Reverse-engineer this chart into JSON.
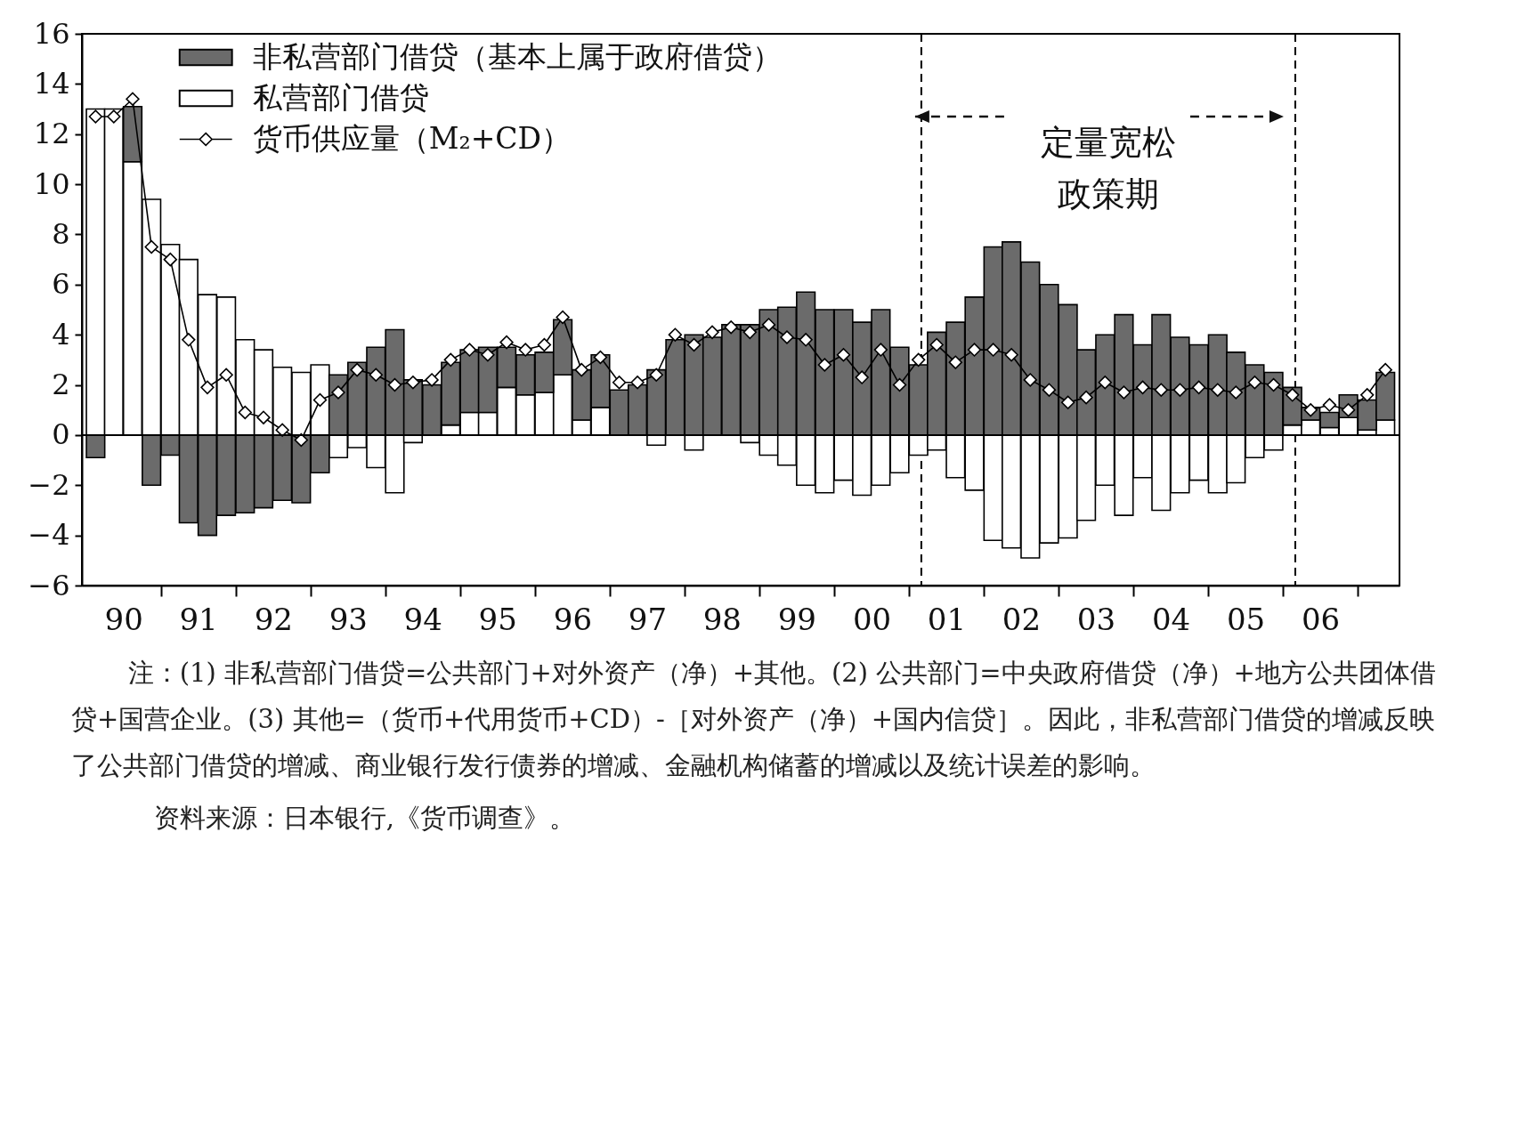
{
  "chart_data": {
    "type": "bar",
    "stacked": true,
    "legend": "top left",
    "marker": "diamond",
    "x": [
      "1990-02-15",
      "1990-05-15",
      "1990-08-15",
      "1990-11-15",
      "1991-02-15",
      "1991-05-15",
      "1991-08-15",
      "1991-11-15",
      "1992-02-15",
      "1992-05-15",
      "1992-08-15",
      "1992-11-15",
      "1993-02-15",
      "1993-05-15",
      "1993-08-15",
      "1993-11-15",
      "1994-02-15",
      "1994-05-15",
      "1994-08-15",
      "1994-11-15",
      "1995-02-15",
      "1995-05-15",
      "1995-08-15",
      "1995-11-15",
      "1996-02-15",
      "1996-05-15",
      "1996-08-15",
      "1996-11-15",
      "1997-02-15",
      "1997-05-15",
      "1997-08-15",
      "1997-11-15",
      "1998-02-15",
      "1998-05-15",
      "1998-08-15",
      "1998-11-15",
      "1999-02-15",
      "1999-05-15",
      "1999-08-15",
      "1999-11-15",
      "2000-02-15",
      "2000-05-15",
      "2000-08-15",
      "2000-11-15",
      "2001-02-15",
      "2001-05-15",
      "2001-08-15",
      "2001-11-15",
      "2002-02-15",
      "2002-05-15",
      "2002-08-15",
      "2002-11-15",
      "2003-02-15",
      "2003-05-15",
      "2003-08-15",
      "2003-11-15",
      "2004-02-15",
      "2004-05-15",
      "2004-08-15",
      "2004-11-15",
      "2005-02-15",
      "2005-05-15",
      "2005-08-15",
      "2005-11-15",
      "2006-02-15",
      "2006-05-15",
      "2006-08-15",
      "2006-11-15",
      "2007-02-15",
      "2007-05-15"
    ],
    "xlim": [
      "1990-01-01",
      "2007-07-01"
    ],
    "xticks": [
      {
        "value": "1990-07-01",
        "label": "90"
      },
      {
        "value": "1991-01-01",
        "label": null
      },
      {
        "value": "1991-07-01",
        "label": "91"
      },
      {
        "value": "1992-01-01",
        "label": null
      },
      {
        "value": "1992-07-01",
        "label": "92"
      },
      {
        "value": "1993-01-01",
        "label": null
      },
      {
        "value": "1993-07-01",
        "label": "93"
      },
      {
        "value": "1994-01-01",
        "label": null
      },
      {
        "value": "1994-07-01",
        "label": "94"
      },
      {
        "value": "1995-01-01",
        "label": null
      },
      {
        "value": "1995-07-01",
        "label": "95"
      },
      {
        "value": "1996-01-01",
        "label": null
      },
      {
        "value": "1996-07-01",
        "label": "96"
      },
      {
        "value": "1997-01-01",
        "label": null
      },
      {
        "value": "1997-07-01",
        "label": "97"
      },
      {
        "value": "1998-01-01",
        "label": null
      },
      {
        "value": "1998-07-01",
        "label": "98"
      },
      {
        "value": "1999-01-01",
        "label": null
      },
      {
        "value": "1999-07-01",
        "label": "99"
      },
      {
        "value": "2000-01-01",
        "label": null
      },
      {
        "value": "2000-07-01",
        "label": "00"
      },
      {
        "value": "2001-01-01",
        "label": null
      },
      {
        "value": "2001-07-01",
        "label": "01"
      },
      {
        "value": "2002-01-01",
        "label": null
      },
      {
        "value": "2002-07-01",
        "label": "02"
      },
      {
        "value": "2003-01-01",
        "label": null
      },
      {
        "value": "2003-07-01",
        "label": "03"
      },
      {
        "value": "2004-01-01",
        "label": null
      },
      {
        "value": "2004-07-01",
        "label": "04"
      },
      {
        "value": "2005-01-01",
        "label": null
      },
      {
        "value": "2005-07-01",
        "label": "05"
      },
      {
        "value": "2006-01-01",
        "label": null
      },
      {
        "value": "2006-07-01",
        "label": "06"
      },
      {
        "value": "2007-01-01",
        "label": null
      }
    ],
    "ylim": [
      -6,
      16
    ],
    "yticks": [
      -6,
      -4,
      -2,
      0,
      2,
      4,
      6,
      8,
      10,
      12,
      14,
      16
    ],
    "series": [
      {
        "name": "私营部门借贷",
        "color": "#ffffff",
        "values": [
          13.0,
          13.0,
          10.9,
          9.4,
          7.6,
          7.0,
          5.6,
          5.5,
          3.8,
          3.4,
          2.7,
          2.5,
          2.8,
          -0.9,
          -0.5,
          -1.3,
          -2.3,
          -0.3,
          null,
          0.4,
          0.9,
          0.9,
          1.9,
          1.6,
          1.7,
          2.4,
          0.6,
          1.1,
          null,
          null,
          -0.4,
          null,
          -0.6,
          null,
          null,
          -0.3,
          -0.8,
          -1.2,
          -2.0,
          -2.3,
          -1.8,
          -2.4,
          -2.0,
          -1.5,
          -0.8,
          -0.6,
          -1.7,
          -2.2,
          -4.2,
          -4.5,
          -4.9,
          -4.3,
          -4.1,
          -3.4,
          -2.0,
          -3.2,
          -1.7,
          -3.0,
          -2.3,
          -1.8,
          -2.3,
          -1.9,
          -0.9,
          -0.6,
          0.4,
          0.6,
          0.3,
          0.7,
          0.2,
          0.6
        ]
      },
      {
        "name": "非私营部门借贷（基本上属于政府借贷）",
        "color": "#6b6b6b",
        "values": [
          -0.9,
          null,
          2.2,
          -2.0,
          -0.8,
          -3.5,
          -4.0,
          -3.2,
          -3.1,
          -2.9,
          -2.6,
          -2.7,
          -1.5,
          2.4,
          2.9,
          3.5,
          4.2,
          2.2,
          2.0,
          2.5,
          2.5,
          2.6,
          1.6,
          1.6,
          1.6,
          2.2,
          2.0,
          2.1,
          1.8,
          2.0,
          2.6,
          3.8,
          4.0,
          3.9,
          4.4,
          4.4,
          5.0,
          5.1,
          5.7,
          5.0,
          5.0,
          4.5,
          5.0,
          3.5,
          2.8,
          4.1,
          4.5,
          5.5,
          7.5,
          7.7,
          6.9,
          6.0,
          5.2,
          3.4,
          4.0,
          4.8,
          3.6,
          4.8,
          3.9,
          3.6,
          4.0,
          3.3,
          2.8,
          2.5,
          1.5,
          0.5,
          0.6,
          0.9,
          1.2,
          1.9
        ]
      },
      {
        "name": "货币供应量（M₂+CD）",
        "type": "line",
        "color": "#000000",
        "values": [
          12.7,
          12.7,
          13.4,
          7.5,
          7.0,
          3.8,
          1.9,
          2.4,
          0.9,
          0.7,
          0.2,
          -0.2,
          1.4,
          1.7,
          2.6,
          2.4,
          2.0,
          2.1,
          2.2,
          3.0,
          3.4,
          3.2,
          3.7,
          3.4,
          3.6,
          4.7,
          2.6,
          3.1,
          2.1,
          2.1,
          2.4,
          4.0,
          3.6,
          4.1,
          4.3,
          4.1,
          4.4,
          3.9,
          3.8,
          2.8,
          3.2,
          2.3,
          3.4,
          2.0,
          3.0,
          3.6,
          2.9,
          3.4,
          3.4,
          3.2,
          2.2,
          1.8,
          1.3,
          1.5,
          2.1,
          1.7,
          1.9,
          1.8,
          1.8,
          1.9,
          1.8,
          1.7,
          2.1,
          2.0,
          1.6,
          1.0,
          1.2,
          1.0,
          1.6,
          2.6
        ]
      }
    ],
    "ref_lines": [
      {
        "axis": "x",
        "value": "2001-03",
        "line_style": "dashed",
        "color": "#000000",
        "label": "定量宽松政策期"
      },
      {
        "axis": "x",
        "value": "2006-03",
        "line_style": "dashed",
        "color": "#000000"
      },
      {
        "axis": "y",
        "value": 0,
        "color": "#000000"
      }
    ],
    "annotations": [
      "注：(1) 非私营部门借贷=公共部门+对外资产（净）+其他。(2) 公共部门=中央政府借贷（净）+地方公共团体借贷+国营企业。(3) 其他=（货币+代用货币+CD）-［对外资产（净）+国内信贷］。因此，非私营部门借贷的增减反映了公共部门借贷的增减、商业银行发行债券的增减、金融机构储蓄的增减以及统计误差的影响。",
      "资料来源：日本银行,《货币调查》。"
    ]
  }
}
